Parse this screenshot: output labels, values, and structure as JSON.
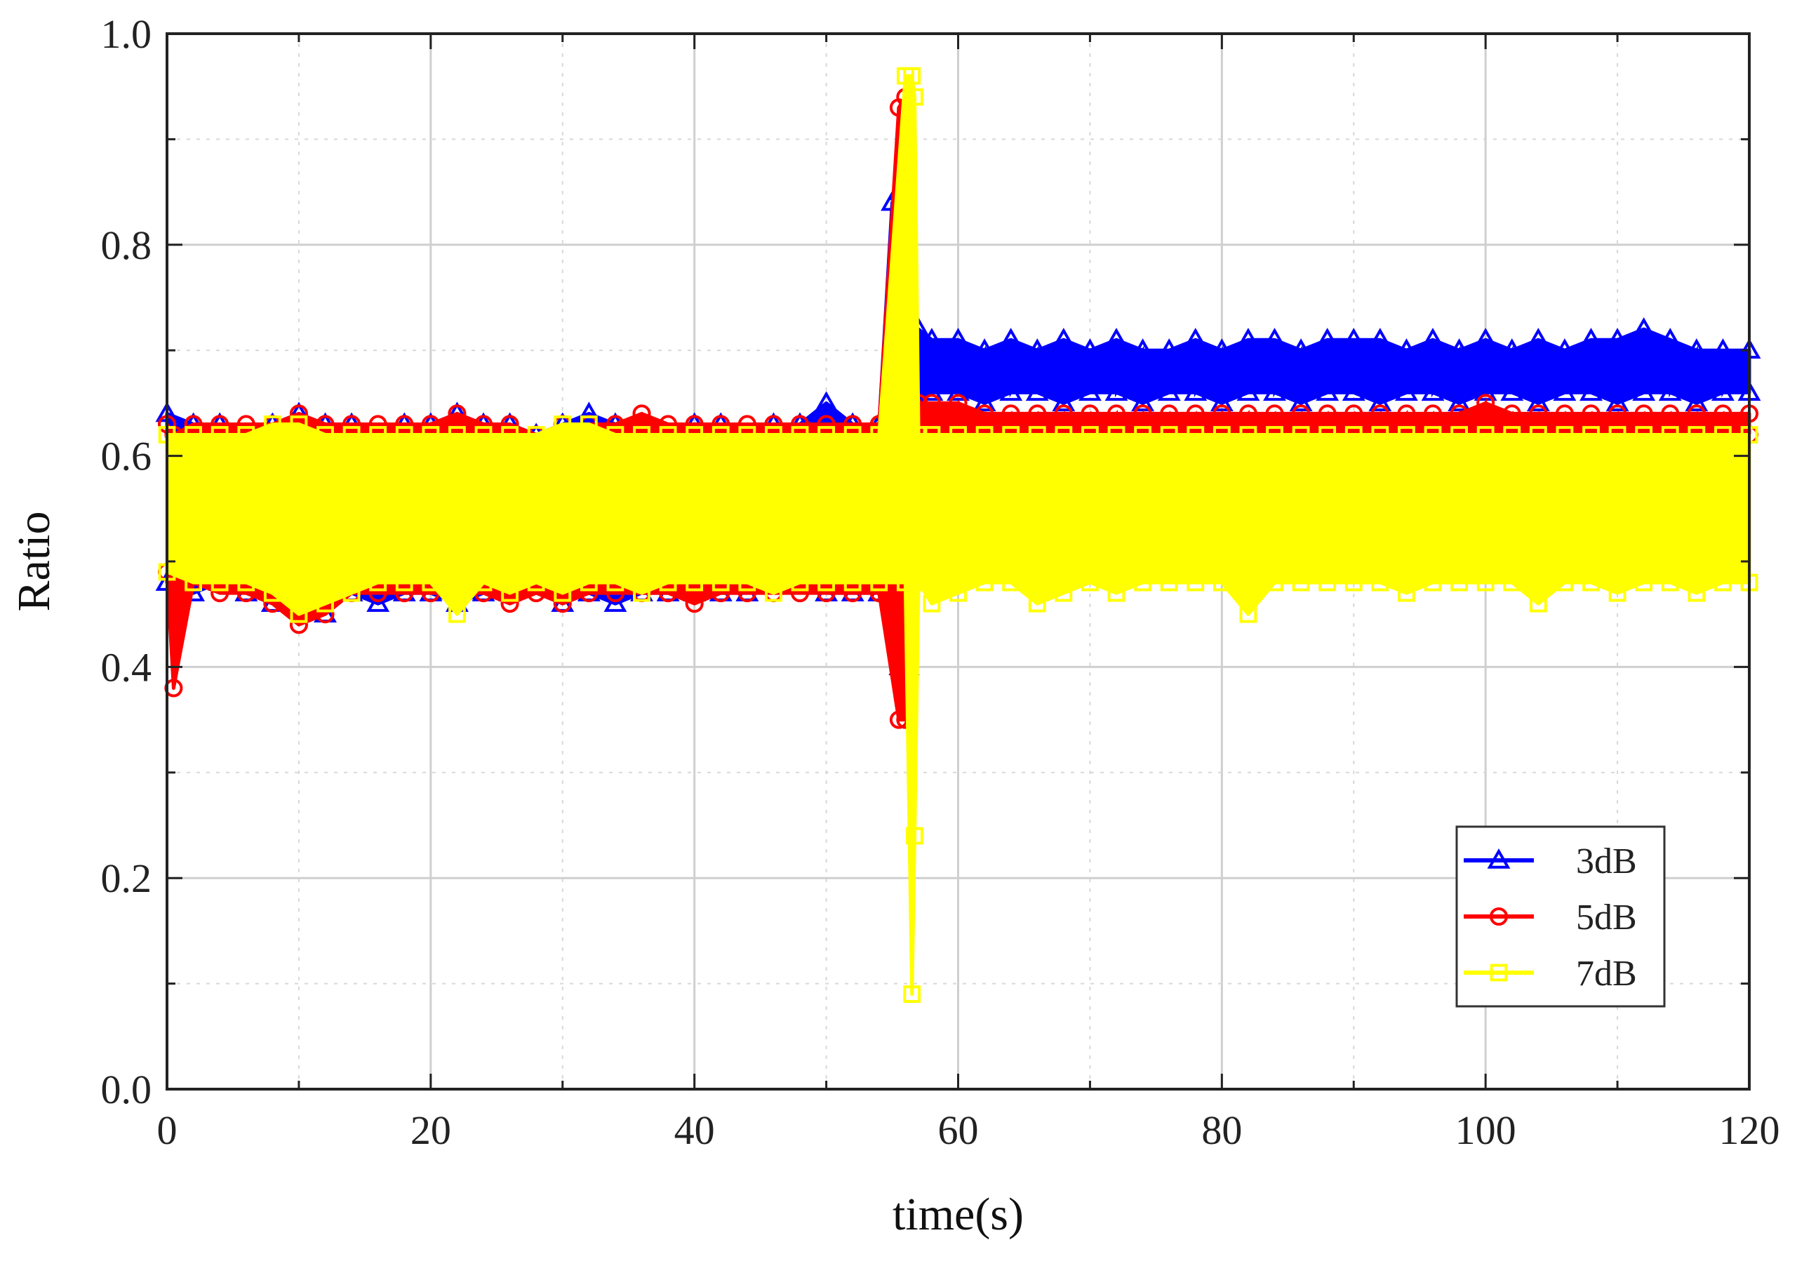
{
  "chart_data": {
    "type": "line",
    "title": "",
    "xlabel": "time(s)",
    "ylabel": "Ratio",
    "xlim": [
      0,
      120
    ],
    "ylim": [
      0.0,
      1.0
    ],
    "xticks": [
      0,
      20,
      40,
      60,
      80,
      100,
      120
    ],
    "xtick_labels": [
      "0",
      "20",
      "40",
      "60",
      "80",
      "100",
      "120"
    ],
    "yticks": [
      0.0,
      0.2,
      0.4,
      0.6,
      0.8,
      1.0
    ],
    "ytick_labels": [
      "0.0",
      "0.2",
      "0.4",
      "0.6",
      "0.8",
      "1.0"
    ],
    "grid": true,
    "legend_position": "bottom-right",
    "series": [
      {
        "name": "3dB",
        "color": "#0000ff",
        "marker": "triangle",
        "x": [
          0,
          2,
          4,
          6,
          8,
          10,
          12,
          14,
          16,
          18,
          20,
          22,
          24,
          26,
          28,
          30,
          32,
          34,
          36,
          38,
          40,
          42,
          44,
          46,
          48,
          50,
          52,
          54,
          55,
          55.6,
          56.2,
          57,
          58,
          60,
          62,
          64,
          66,
          68,
          70,
          72,
          74,
          76,
          78,
          80,
          82,
          84,
          86,
          88,
          90,
          92,
          94,
          96,
          98,
          100,
          102,
          104,
          106,
          108,
          110,
          112,
          114,
          116,
          118,
          120
        ],
        "min": [
          0.48,
          0.47,
          0.48,
          0.47,
          0.46,
          0.46,
          0.45,
          0.47,
          0.46,
          0.47,
          0.47,
          0.46,
          0.47,
          0.47,
          0.48,
          0.46,
          0.47,
          0.46,
          0.47,
          0.47,
          0.47,
          0.47,
          0.47,
          0.48,
          0.48,
          0.47,
          0.47,
          0.47,
          0.47,
          0.4,
          0.4,
          0.65,
          0.66,
          0.66,
          0.65,
          0.66,
          0.66,
          0.65,
          0.66,
          0.66,
          0.65,
          0.66,
          0.66,
          0.65,
          0.66,
          0.66,
          0.65,
          0.66,
          0.66,
          0.65,
          0.66,
          0.66,
          0.65,
          0.66,
          0.66,
          0.65,
          0.66,
          0.66,
          0.65,
          0.66,
          0.66,
          0.65,
          0.66,
          0.66
        ],
        "max": [
          0.64,
          0.63,
          0.63,
          0.62,
          0.63,
          0.64,
          0.63,
          0.63,
          0.62,
          0.63,
          0.63,
          0.64,
          0.63,
          0.63,
          0.62,
          0.63,
          0.64,
          0.63,
          0.63,
          0.62,
          0.63,
          0.63,
          0.62,
          0.63,
          0.63,
          0.65,
          0.63,
          0.63,
          0.84,
          0.85,
          0.7,
          0.72,
          0.71,
          0.71,
          0.7,
          0.71,
          0.7,
          0.71,
          0.7,
          0.71,
          0.7,
          0.7,
          0.71,
          0.7,
          0.71,
          0.71,
          0.7,
          0.71,
          0.71,
          0.71,
          0.7,
          0.71,
          0.7,
          0.71,
          0.7,
          0.71,
          0.7,
          0.71,
          0.71,
          0.72,
          0.71,
          0.7,
          0.7,
          0.7
        ]
      },
      {
        "name": "5dB",
        "color": "#ff0000",
        "marker": "circle",
        "x": [
          0,
          0.5,
          2,
          4,
          6,
          8,
          10,
          12,
          14,
          16,
          18,
          20,
          22,
          24,
          26,
          28,
          30,
          32,
          34,
          36,
          38,
          40,
          42,
          44,
          46,
          48,
          50,
          52,
          54,
          55.5,
          56,
          56.5,
          57,
          58,
          60,
          62,
          64,
          66,
          68,
          70,
          72,
          74,
          76,
          78,
          80,
          82,
          84,
          86,
          88,
          90,
          92,
          94,
          96,
          98,
          100,
          102,
          104,
          106,
          108,
          110,
          112,
          114,
          116,
          118,
          120
        ],
        "min": [
          0.49,
          0.38,
          0.48,
          0.47,
          0.47,
          0.46,
          0.44,
          0.45,
          0.47,
          0.47,
          0.47,
          0.47,
          0.47,
          0.47,
          0.46,
          0.47,
          0.46,
          0.47,
          0.47,
          0.47,
          0.47,
          0.46,
          0.47,
          0.47,
          0.47,
          0.47,
          0.47,
          0.47,
          0.47,
          0.35,
          0.35,
          0.62,
          0.62,
          0.62,
          0.62,
          0.62,
          0.62,
          0.62,
          0.62,
          0.61,
          0.61,
          0.62,
          0.62,
          0.61,
          0.61,
          0.62,
          0.62,
          0.62,
          0.62,
          0.62,
          0.61,
          0.62,
          0.61,
          0.61,
          0.62,
          0.62,
          0.62,
          0.62,
          0.62,
          0.62,
          0.62,
          0.62,
          0.62,
          0.62,
          0.62
        ],
        "max": [
          0.63,
          0.62,
          0.63,
          0.63,
          0.63,
          0.63,
          0.64,
          0.63,
          0.63,
          0.63,
          0.63,
          0.63,
          0.64,
          0.63,
          0.63,
          0.62,
          0.63,
          0.63,
          0.63,
          0.64,
          0.63,
          0.63,
          0.63,
          0.63,
          0.63,
          0.63,
          0.63,
          0.63,
          0.63,
          0.93,
          0.94,
          0.65,
          0.65,
          0.65,
          0.65,
          0.64,
          0.64,
          0.64,
          0.64,
          0.64,
          0.64,
          0.64,
          0.64,
          0.64,
          0.64,
          0.64,
          0.64,
          0.64,
          0.64,
          0.64,
          0.64,
          0.64,
          0.64,
          0.64,
          0.65,
          0.64,
          0.64,
          0.64,
          0.64,
          0.64,
          0.64,
          0.64,
          0.64,
          0.64,
          0.64
        ]
      },
      {
        "name": "7dB",
        "color": "#ffff00",
        "marker": "square",
        "x": [
          0,
          2,
          4,
          6,
          8,
          10,
          12,
          14,
          16,
          18,
          20,
          22,
          24,
          26,
          28,
          30,
          32,
          34,
          36,
          38,
          40,
          42,
          44,
          46,
          48,
          50,
          52,
          54,
          56,
          56.5,
          56.7,
          57,
          58,
          60,
          62,
          64,
          66,
          68,
          70,
          72,
          74,
          76,
          78,
          80,
          82,
          84,
          86,
          88,
          90,
          92,
          94,
          96,
          98,
          100,
          102,
          104,
          106,
          108,
          110,
          112,
          114,
          116,
          118,
          120
        ],
        "min": [
          0.49,
          0.48,
          0.48,
          0.48,
          0.47,
          0.45,
          0.46,
          0.47,
          0.48,
          0.48,
          0.48,
          0.45,
          0.48,
          0.47,
          0.48,
          0.47,
          0.48,
          0.48,
          0.47,
          0.48,
          0.48,
          0.48,
          0.48,
          0.47,
          0.48,
          0.48,
          0.48,
          0.48,
          0.48,
          0.09,
          0.24,
          0.48,
          0.46,
          0.47,
          0.48,
          0.48,
          0.46,
          0.47,
          0.48,
          0.47,
          0.48,
          0.48,
          0.48,
          0.48,
          0.45,
          0.48,
          0.48,
          0.48,
          0.48,
          0.48,
          0.47,
          0.48,
          0.48,
          0.48,
          0.48,
          0.46,
          0.48,
          0.48,
          0.47,
          0.48,
          0.48,
          0.47,
          0.48,
          0.48
        ],
        "max": [
          0.62,
          0.62,
          0.62,
          0.62,
          0.63,
          0.63,
          0.62,
          0.62,
          0.62,
          0.62,
          0.62,
          0.62,
          0.62,
          0.62,
          0.62,
          0.63,
          0.63,
          0.62,
          0.62,
          0.62,
          0.62,
          0.62,
          0.62,
          0.62,
          0.62,
          0.62,
          0.62,
          0.62,
          0.96,
          0.96,
          0.94,
          0.62,
          0.62,
          0.62,
          0.62,
          0.62,
          0.62,
          0.62,
          0.62,
          0.62,
          0.62,
          0.62,
          0.62,
          0.62,
          0.62,
          0.62,
          0.62,
          0.62,
          0.62,
          0.62,
          0.62,
          0.62,
          0.62,
          0.62,
          0.62,
          0.62,
          0.62,
          0.62,
          0.62,
          0.62,
          0.62,
          0.62,
          0.62,
          0.62
        ]
      }
    ]
  }
}
